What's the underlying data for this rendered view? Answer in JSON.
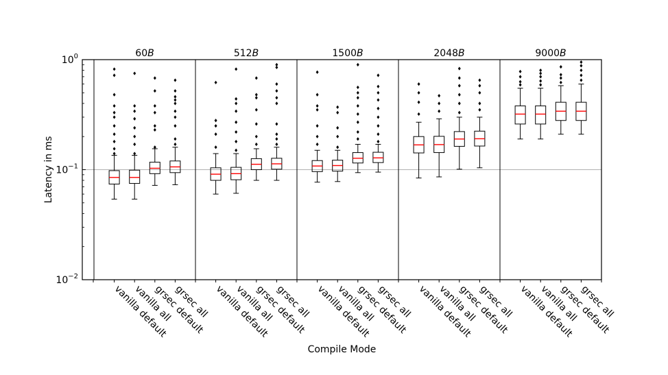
{
  "chart_data": {
    "type": "box",
    "xlabel": "Compile Mode",
    "ylabel": "Latency in ms",
    "yscale": "log",
    "ylim": [
      0.01,
      1
    ],
    "y_ticks": [
      {
        "value": 1,
        "base": "10",
        "exp": "0"
      },
      {
        "value": 0.1,
        "base": "10",
        "exp": "−1"
      },
      {
        "value": 0.01,
        "base": "10",
        "exp": "−2"
      }
    ],
    "reference_line": 0.1,
    "groups": [
      {
        "size": "60",
        "unit": "B"
      },
      {
        "size": "512",
        "unit": "B"
      },
      {
        "size": "1500",
        "unit": "B"
      },
      {
        "size": "2048",
        "unit": "B"
      },
      {
        "size": "9000",
        "unit": "B"
      }
    ],
    "modes": [
      "vanilla default",
      "vanilla all",
      "grsec default",
      "grsec all"
    ],
    "boxes": [
      [
        {
          "whislo": 0.054,
          "q1": 0.074,
          "med": 0.085,
          "q3": 0.098,
          "whishi": 0.135,
          "fliers": [
            0.14,
            0.155,
            0.18,
            0.21,
            0.25,
            0.3,
            0.33,
            0.38,
            0.48,
            0.72,
            0.82
          ]
        },
        {
          "whislo": 0.054,
          "q1": 0.075,
          "med": 0.085,
          "q3": 0.099,
          "whishi": 0.135,
          "fliers": [
            0.14,
            0.17,
            0.2,
            0.24,
            0.29,
            0.34,
            0.38,
            0.75
          ]
        },
        {
          "whislo": 0.072,
          "q1": 0.092,
          "med": 0.103,
          "q3": 0.117,
          "whishi": 0.155,
          "fliers": [
            0.16,
            0.23,
            0.25,
            0.33,
            0.38,
            0.52,
            0.68
          ]
        },
        {
          "whislo": 0.073,
          "q1": 0.094,
          "med": 0.106,
          "q3": 0.12,
          "whishi": 0.16,
          "fliers": [
            0.17,
            0.19,
            0.25,
            0.3,
            0.34,
            0.4,
            0.43,
            0.46,
            0.52,
            0.65
          ]
        }
      ],
      [
        {
          "whislo": 0.06,
          "q1": 0.08,
          "med": 0.091,
          "q3": 0.104,
          "whishi": 0.14,
          "fliers": [
            0.16,
            0.21,
            0.25,
            0.28,
            0.62
          ]
        },
        {
          "whislo": 0.061,
          "q1": 0.081,
          "med": 0.092,
          "q3": 0.105,
          "whishi": 0.14,
          "fliers": [
            0.15,
            0.18,
            0.22,
            0.27,
            0.34,
            0.4,
            0.44,
            0.82
          ]
        },
        {
          "whislo": 0.08,
          "q1": 0.1,
          "med": 0.112,
          "q3": 0.126,
          "whishi": 0.155,
          "fliers": [
            0.17,
            0.2,
            0.26,
            0.35,
            0.45,
            0.48,
            0.68
          ]
        },
        {
          "whislo": 0.08,
          "q1": 0.101,
          "med": 0.113,
          "q3": 0.127,
          "whishi": 0.16,
          "fliers": [
            0.17,
            0.19,
            0.21,
            0.26,
            0.4,
            0.45,
            0.52,
            0.6,
            0.85,
            0.9
          ]
        }
      ],
      [
        {
          "whislo": 0.077,
          "q1": 0.096,
          "med": 0.108,
          "q3": 0.121,
          "whishi": 0.15,
          "fliers": [
            0.17,
            0.2,
            0.25,
            0.35,
            0.38,
            0.48,
            0.77
          ]
        },
        {
          "whislo": 0.078,
          "q1": 0.097,
          "med": 0.109,
          "q3": 0.122,
          "whishi": 0.15,
          "fliers": [
            0.16,
            0.2,
            0.24,
            0.33,
            0.37
          ]
        },
        {
          "whislo": 0.094,
          "q1": 0.115,
          "med": 0.127,
          "q3": 0.143,
          "whishi": 0.17,
          "fliers": [
            0.19,
            0.22,
            0.27,
            0.32,
            0.38,
            0.45,
            0.5,
            0.56,
            0.9
          ]
        },
        {
          "whislo": 0.095,
          "q1": 0.116,
          "med": 0.128,
          "q3": 0.144,
          "whishi": 0.17,
          "fliers": [
            0.18,
            0.21,
            0.25,
            0.3,
            0.36,
            0.43,
            0.5,
            0.57,
            0.72
          ]
        }
      ],
      [
        {
          "whislo": 0.084,
          "q1": 0.142,
          "med": 0.168,
          "q3": 0.2,
          "whishi": 0.27,
          "fliers": [
            0.32,
            0.41,
            0.5,
            0.6
          ]
        },
        {
          "whislo": 0.086,
          "q1": 0.143,
          "med": 0.169,
          "q3": 0.201,
          "whishi": 0.29,
          "fliers": [
            0.34,
            0.4,
            0.47
          ]
        },
        {
          "whislo": 0.101,
          "q1": 0.163,
          "med": 0.19,
          "q3": 0.222,
          "whishi": 0.3,
          "fliers": [
            0.33,
            0.4,
            0.48,
            0.58,
            0.68,
            0.83
          ]
        },
        {
          "whislo": 0.104,
          "q1": 0.164,
          "med": 0.191,
          "q3": 0.224,
          "whishi": 0.3,
          "fliers": [
            0.35,
            0.4,
            0.5,
            0.58,
            0.65
          ]
        }
      ],
      [
        {
          "whislo": 0.19,
          "q1": 0.26,
          "med": 0.32,
          "q3": 0.38,
          "whishi": 0.55,
          "fliers": [
            0.59,
            0.63,
            0.7,
            0.78
          ]
        },
        {
          "whislo": 0.19,
          "q1": 0.26,
          "med": 0.32,
          "q3": 0.38,
          "whishi": 0.55,
          "fliers": [
            0.59,
            0.64,
            0.7,
            0.75,
            0.8
          ]
        },
        {
          "whislo": 0.21,
          "q1": 0.28,
          "med": 0.34,
          "q3": 0.41,
          "whishi": 0.58,
          "fliers": [
            0.62,
            0.68,
            0.73,
            0.86
          ]
        },
        {
          "whislo": 0.21,
          "q1": 0.28,
          "med": 0.34,
          "q3": 0.41,
          "whishi": 0.6,
          "fliers": [
            0.65,
            0.72,
            0.8,
            0.88,
            0.95
          ]
        }
      ]
    ],
    "colors": {
      "box": "#000000",
      "median": "#ff0000",
      "flier": "#000000",
      "reference_line": "#b0b0b0"
    }
  }
}
